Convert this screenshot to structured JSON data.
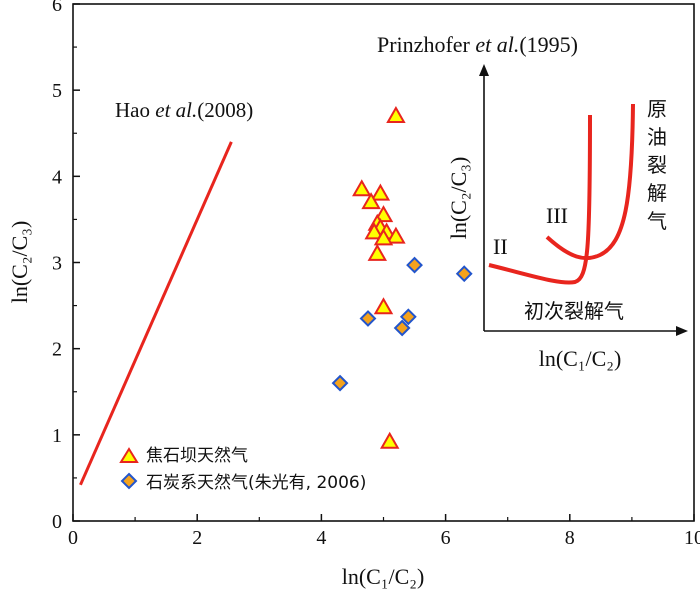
{
  "chart_data": {
    "type": "scatter",
    "xlabel": "ln(C₁/C₂)",
    "ylabel": "ln(C₂/C₃)",
    "xlim": [
      0,
      10
    ],
    "ylim": [
      0,
      6
    ],
    "x_ticks": [
      "0",
      "2",
      "4",
      "6",
      "8",
      "10"
    ],
    "y_ticks": [
      "0",
      "1",
      "2",
      "3",
      "4",
      "5",
      "6"
    ],
    "series": [
      {
        "name": "焦石坝天然气",
        "marker": "triangle",
        "color": "#ffff00",
        "edge_color": "#e8251e",
        "points": [
          [
            5.2,
            4.7
          ],
          [
            4.65,
            3.85
          ],
          [
            4.95,
            3.8
          ],
          [
            4.8,
            3.7
          ],
          [
            5.0,
            3.55
          ],
          [
            4.9,
            3.45
          ],
          [
            4.95,
            3.4
          ],
          [
            4.85,
            3.35
          ],
          [
            5.05,
            3.35
          ],
          [
            5.2,
            3.3
          ],
          [
            5.0,
            3.28
          ],
          [
            4.9,
            3.1
          ],
          [
            5.0,
            2.48
          ],
          [
            5.1,
            0.92
          ]
        ]
      },
      {
        "name": "石炭系天然气(朱光有, 2006)",
        "marker": "diamond",
        "color": "#f4a21c",
        "edge_color": "#2255cc",
        "points": [
          [
            4.3,
            1.6
          ],
          [
            4.75,
            2.35
          ],
          [
            5.3,
            2.24
          ],
          [
            5.4,
            2.37
          ],
          [
            5.5,
            2.97
          ],
          [
            6.3,
            2.87
          ]
        ]
      }
    ],
    "reference_line": {
      "label": "Hao et al.(2008)",
      "color": "#e8251e",
      "points": [
        [
          0.12,
          0.42
        ],
        [
          2.55,
          4.4
        ]
      ]
    },
    "annotations": {
      "hao_prefix": "Hao ",
      "hao_italic": "et al.",
      "hao_suffix": "(2008)"
    },
    "inset": {
      "title_prefix": "Prinzhofer ",
      "title_italic": "et al.",
      "title_suffix": "(1995)",
      "xlabel": "ln(C₁/C₂)",
      "ylabel": "ln(C₂/C₃)",
      "label_II": "II",
      "label_III": "III",
      "primary_cracking": "初次裂解气",
      "oil_cracking_chars": [
        "原",
        "油",
        "裂",
        "解",
        "气"
      ],
      "curve_color": "#e8251e"
    }
  }
}
